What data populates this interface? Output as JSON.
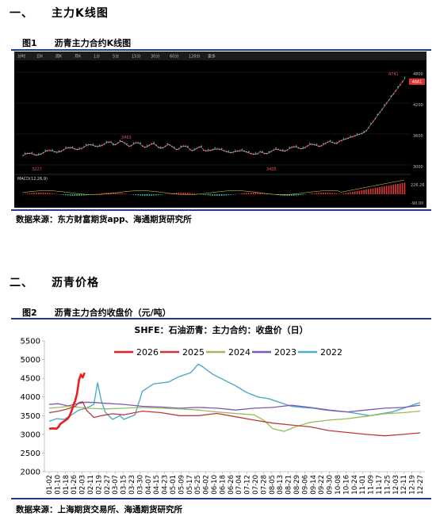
{
  "section1": {
    "title": "一、　　主力K线图"
  },
  "fig1": {
    "title": "图1　　沥青主力合约K线图",
    "source": "数据来源：东方财富期货app、海通期货研究所",
    "toolbar_tabs": [
      "分时",
      "日K",
      "周K",
      "月K",
      "1分",
      "5分",
      "15分",
      "30分",
      "60分",
      "120分",
      "更多"
    ],
    "price_axis": [
      "4800",
      "4200",
      "3600",
      "3000"
    ],
    "current_price": "4661",
    "marks": [
      "4741",
      "3463",
      "3227",
      "3405"
    ],
    "macd_axis": [
      "226.26",
      "-90.00"
    ],
    "macd_label": "MACD(12,26,9)"
  },
  "section2": {
    "title": "二、　　沥青价格"
  },
  "fig2": {
    "title": "图2　　沥青主力合约收盘价（元/吨）",
    "source": "数据来源：上海期货交易所、海通期货研究所"
  },
  "chart_data": {
    "type": "line",
    "title": "SHFE：石油沥青：主力合约：收盘价（日）",
    "ylim": [
      2000,
      5500
    ],
    "yticks": [
      2000,
      2500,
      3000,
      3500,
      4000,
      4500,
      5000,
      5500
    ],
    "xticks": [
      "01-02",
      "01-10",
      "01-18",
      "01-26",
      "02-03",
      "02-11",
      "02-19",
      "02-27",
      "03-07",
      "03-15",
      "03-23",
      "03-30",
      "04-07",
      "04-15",
      "04-23",
      "05-01",
      "05-09",
      "05-17",
      "05-25",
      "06-02",
      "06-10",
      "06-18",
      "06-26",
      "07-04",
      "07-12",
      "07-20",
      "07-28",
      "08-05",
      "08-13",
      "08-21",
      "08-29",
      "09-06",
      "09-14",
      "09-22",
      "09-30",
      "10-08",
      "10-16",
      "10-24",
      "11-01",
      "11-09",
      "11-17",
      "11-25",
      "12-03",
      "12-11",
      "12-19",
      "12-27"
    ],
    "legend_position": "top",
    "series": [
      {
        "name": "2026",
        "color": "#ee1c1c",
        "width": 2.6,
        "points": [
          [
            0,
            3150
          ],
          [
            2,
            3160
          ],
          [
            4,
            3150
          ],
          [
            5,
            3200
          ],
          [
            6,
            3280
          ],
          [
            8,
            3350
          ],
          [
            10,
            3420
          ],
          [
            11,
            3500
          ],
          [
            12,
            3620
          ],
          [
            13,
            3780
          ],
          [
            14,
            3900
          ],
          [
            15,
            4100
          ],
          [
            16,
            4450
          ],
          [
            17,
            4600
          ],
          [
            18,
            4520
          ],
          [
            19,
            4650
          ]
        ]
      },
      {
        "name": "2025",
        "color": "#c0393c",
        "width": 1.3,
        "points": [
          [
            0,
            3580
          ],
          [
            5,
            3620
          ],
          [
            10,
            3680
          ],
          [
            14,
            3750
          ],
          [
            16,
            3850
          ],
          [
            18,
            3870
          ],
          [
            20,
            3650
          ],
          [
            24,
            3450
          ],
          [
            28,
            3500
          ],
          [
            34,
            3550
          ],
          [
            40,
            3520
          ],
          [
            50,
            3620
          ],
          [
            60,
            3580
          ],
          [
            70,
            3500
          ],
          [
            80,
            3500
          ],
          [
            90,
            3560
          ],
          [
            100,
            3470
          ],
          [
            110,
            3380
          ],
          [
            120,
            3300
          ],
          [
            130,
            3250
          ],
          [
            140,
            3200
          ],
          [
            150,
            3100
          ],
          [
            160,
            3050
          ],
          [
            170,
            3000
          ],
          [
            180,
            2960
          ],
          [
            190,
            3000
          ],
          [
            199,
            3040
          ]
        ]
      },
      {
        "name": "2024",
        "color": "#9bbb59",
        "width": 1.3,
        "points": [
          [
            0,
            3700
          ],
          [
            5,
            3720
          ],
          [
            10,
            3750
          ],
          [
            15,
            3730
          ],
          [
            20,
            3700
          ],
          [
            30,
            3680
          ],
          [
            40,
            3700
          ],
          [
            50,
            3720
          ],
          [
            60,
            3700
          ],
          [
            70,
            3680
          ],
          [
            80,
            3650
          ],
          [
            90,
            3600
          ],
          [
            100,
            3560
          ],
          [
            110,
            3520
          ],
          [
            115,
            3380
          ],
          [
            120,
            3150
          ],
          [
            126,
            3080
          ],
          [
            132,
            3200
          ],
          [
            140,
            3320
          ],
          [
            150,
            3380
          ],
          [
            160,
            3420
          ],
          [
            170,
            3480
          ],
          [
            180,
            3550
          ],
          [
            190,
            3580
          ],
          [
            199,
            3620
          ]
        ]
      },
      {
        "name": "2023",
        "color": "#7e57b4",
        "width": 1.3,
        "points": [
          [
            0,
            3800
          ],
          [
            5,
            3820
          ],
          [
            10,
            3760
          ],
          [
            15,
            3820
          ],
          [
            20,
            3860
          ],
          [
            25,
            3850
          ],
          [
            30,
            3830
          ],
          [
            40,
            3800
          ],
          [
            50,
            3750
          ],
          [
            60,
            3730
          ],
          [
            70,
            3700
          ],
          [
            80,
            3720
          ],
          [
            90,
            3700
          ],
          [
            100,
            3650
          ],
          [
            110,
            3700
          ],
          [
            120,
            3720
          ],
          [
            130,
            3780
          ],
          [
            140,
            3720
          ],
          [
            150,
            3650
          ],
          [
            160,
            3600
          ],
          [
            170,
            3650
          ],
          [
            180,
            3700
          ],
          [
            190,
            3720
          ],
          [
            199,
            3780
          ]
        ]
      },
      {
        "name": "2022",
        "color": "#4bacc6",
        "width": 1.4,
        "points": [
          [
            0,
            3350
          ],
          [
            4,
            3420
          ],
          [
            8,
            3400
          ],
          [
            12,
            3520
          ],
          [
            16,
            3650
          ],
          [
            20,
            3700
          ],
          [
            24,
            3800
          ],
          [
            26,
            4380
          ],
          [
            28,
            3900
          ],
          [
            30,
            3600
          ],
          [
            34,
            3400
          ],
          [
            38,
            3500
          ],
          [
            40,
            3400
          ],
          [
            46,
            3520
          ],
          [
            50,
            4150
          ],
          [
            56,
            4350
          ],
          [
            64,
            4400
          ],
          [
            70,
            4550
          ],
          [
            76,
            4650
          ],
          [
            80,
            4880
          ],
          [
            82,
            4820
          ],
          [
            88,
            4600
          ],
          [
            94,
            4450
          ],
          [
            100,
            4300
          ],
          [
            106,
            4120
          ],
          [
            112,
            4000
          ],
          [
            118,
            3950
          ],
          [
            124,
            3850
          ],
          [
            130,
            3750
          ],
          [
            136,
            3720
          ],
          [
            142,
            3700
          ],
          [
            148,
            3650
          ],
          [
            154,
            3620
          ],
          [
            160,
            3600
          ],
          [
            166,
            3550
          ],
          [
            172,
            3500
          ],
          [
            178,
            3550
          ],
          [
            184,
            3600
          ],
          [
            190,
            3700
          ],
          [
            199,
            3850
          ]
        ]
      }
    ]
  }
}
